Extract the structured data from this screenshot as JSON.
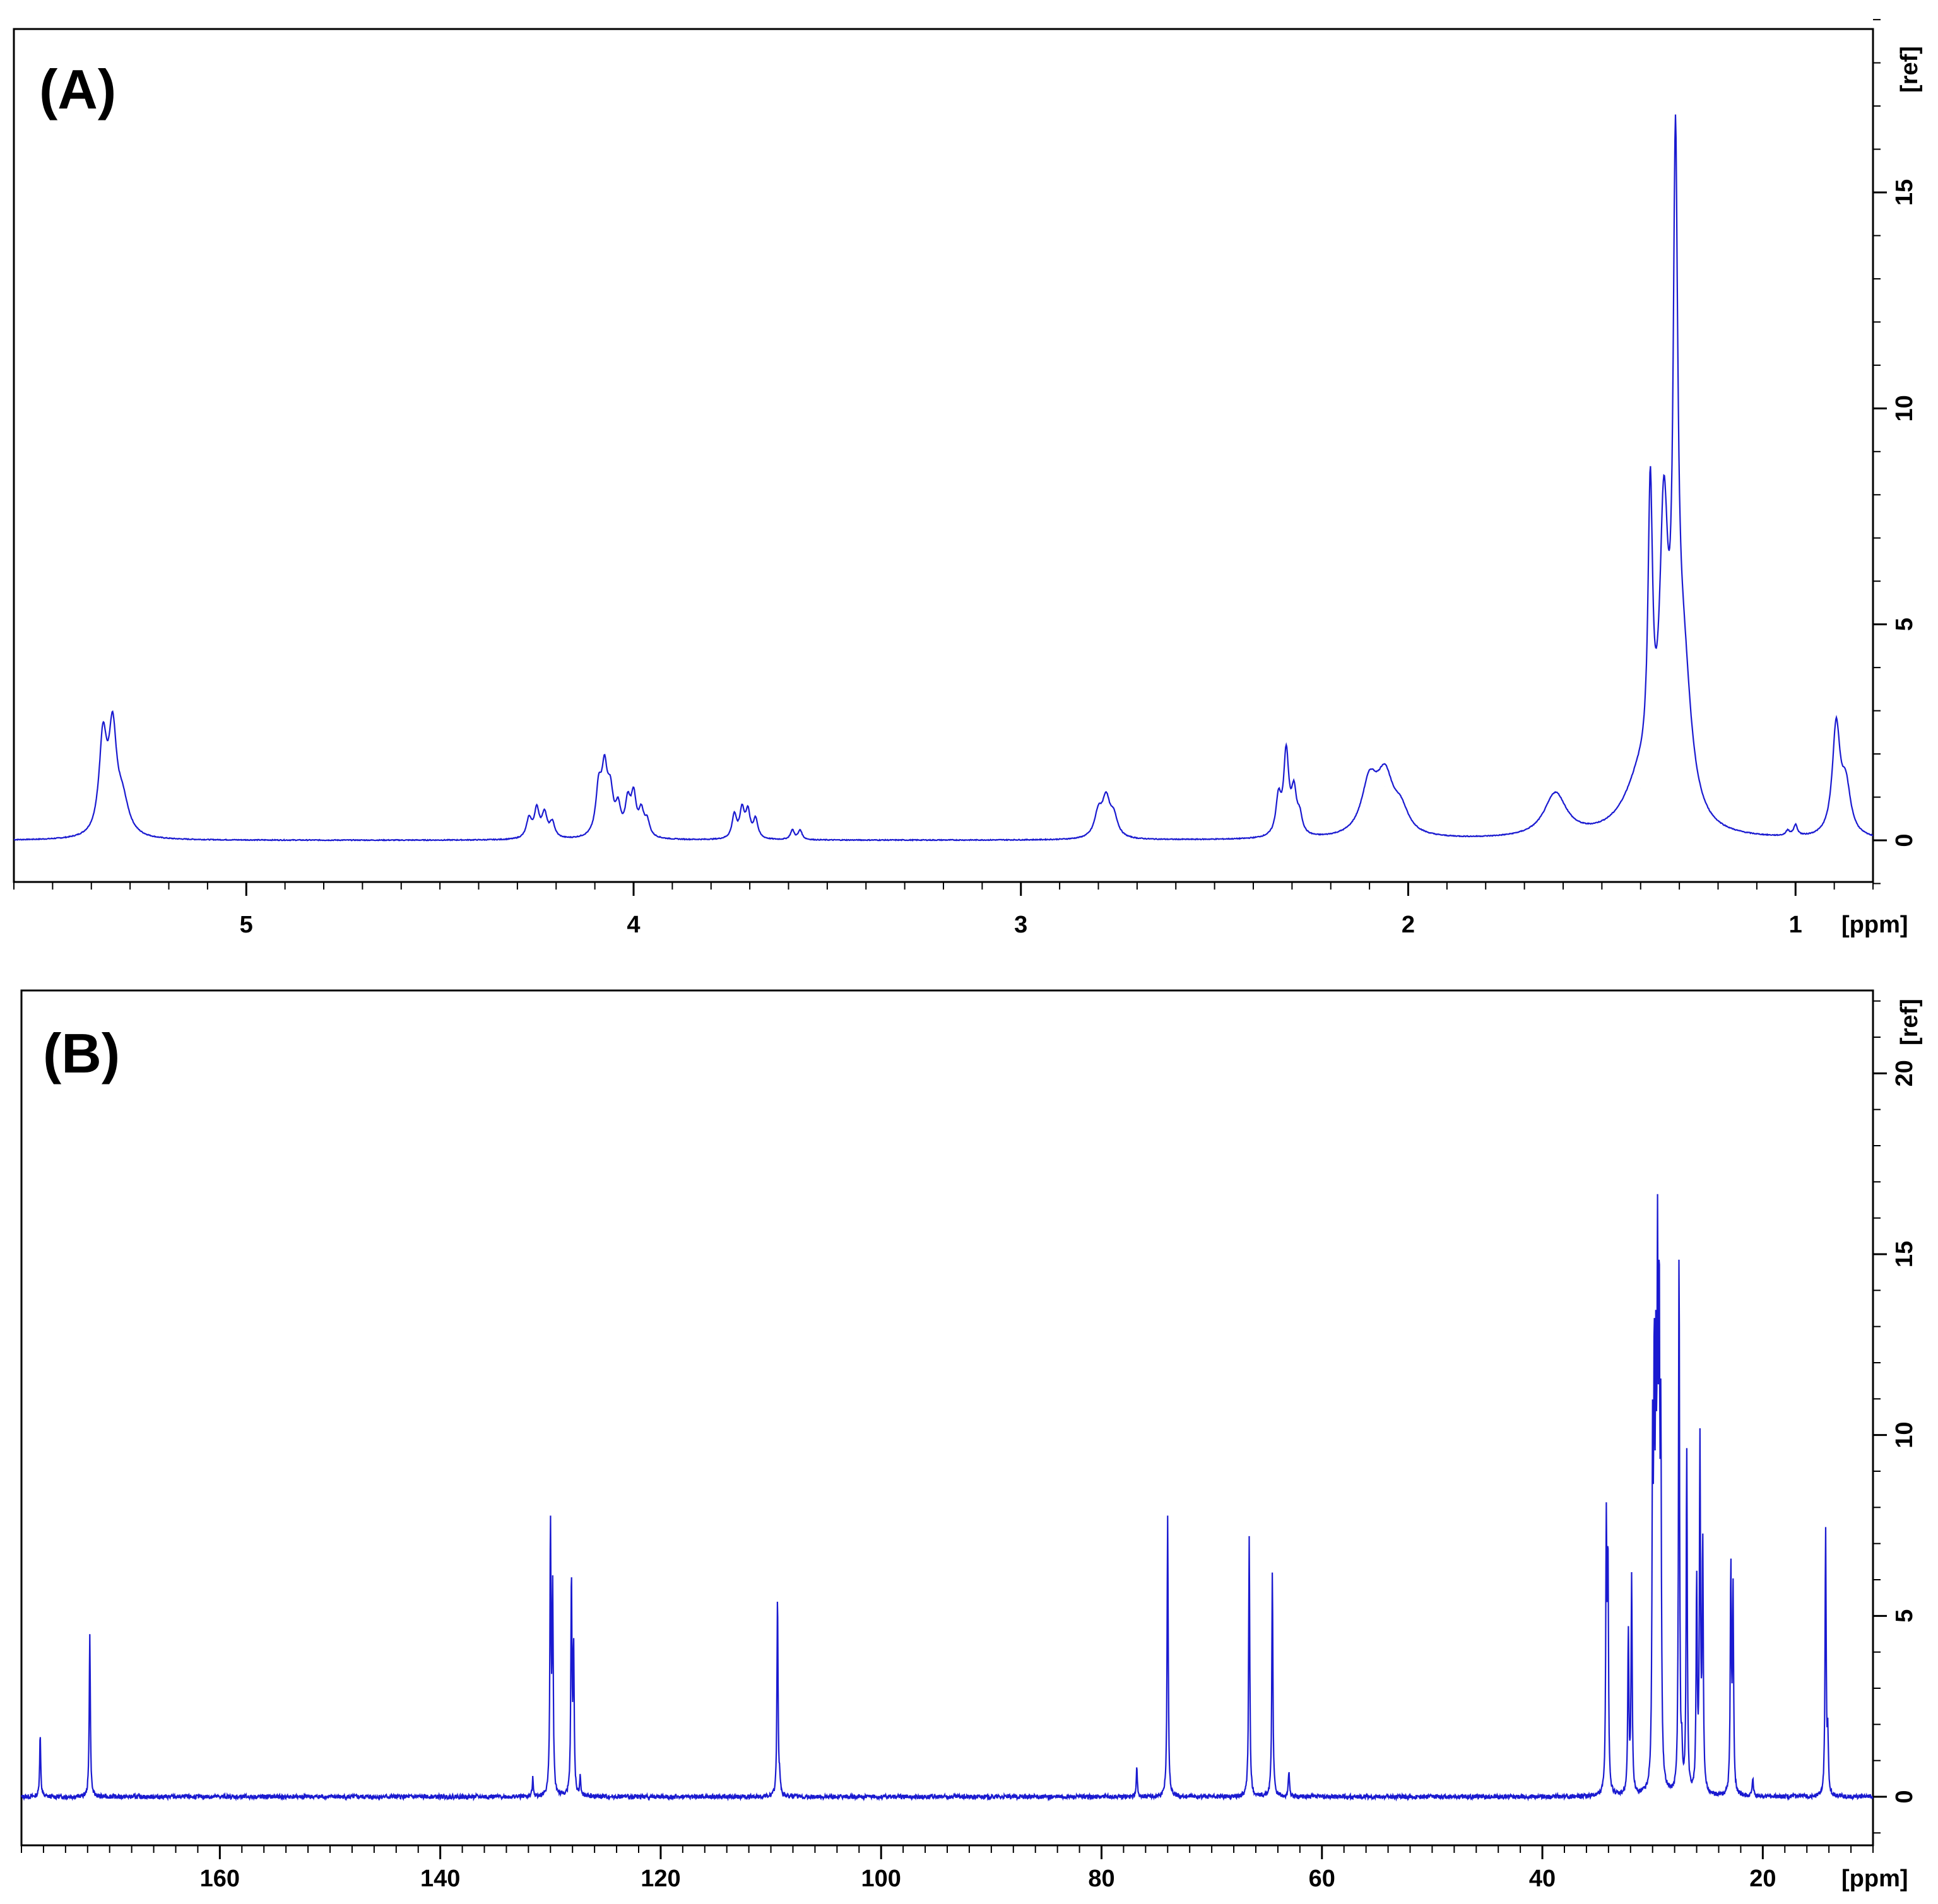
{
  "colors": {
    "trace": "#1a1ad0",
    "axis": "#000000",
    "background": "#ffffff"
  },
  "chart_data": [
    {
      "type": "line",
      "panel_label": "(A)",
      "xlabel": "[ppm]",
      "ylabel": "[ref]",
      "xlim": [
        5.6,
        0.8
      ],
      "ylim": [
        -1,
        19
      ],
      "x_reversed": true,
      "x_ticks": [
        5,
        4,
        3,
        2,
        1
      ],
      "y_ticks": [
        0,
        5,
        10,
        15
      ],
      "series": [
        {
          "peaks": [
            {
              "x": 5.37,
              "y": 2.2,
              "w": 0.012
            },
            {
              "x": 5.345,
              "y": 2.25,
              "w": 0.012
            },
            {
              "x": 5.32,
              "y": 0.8,
              "w": 0.02
            },
            {
              "x": 4.27,
              "y": 0.45,
              "w": 0.008
            },
            {
              "x": 4.25,
              "y": 0.65,
              "w": 0.008
            },
            {
              "x": 4.23,
              "y": 0.55,
              "w": 0.008
            },
            {
              "x": 4.21,
              "y": 0.35,
              "w": 0.008
            },
            {
              "x": 4.09,
              "y": 1.05,
              "w": 0.009
            },
            {
              "x": 4.075,
              "y": 1.4,
              "w": 0.009
            },
            {
              "x": 4.06,
              "y": 0.9,
              "w": 0.009
            },
            {
              "x": 4.04,
              "y": 0.6,
              "w": 0.008
            },
            {
              "x": 4.015,
              "y": 0.75,
              "w": 0.008
            },
            {
              "x": 4.0,
              "y": 0.9,
              "w": 0.008
            },
            {
              "x": 3.98,
              "y": 0.55,
              "w": 0.008
            },
            {
              "x": 3.965,
              "y": 0.35,
              "w": 0.008
            },
            {
              "x": 3.74,
              "y": 0.55,
              "w": 0.007
            },
            {
              "x": 3.72,
              "y": 0.65,
              "w": 0.007
            },
            {
              "x": 3.705,
              "y": 0.6,
              "w": 0.007
            },
            {
              "x": 3.685,
              "y": 0.45,
              "w": 0.007
            },
            {
              "x": 3.59,
              "y": 0.22,
              "w": 0.006
            },
            {
              "x": 3.57,
              "y": 0.22,
              "w": 0.006
            },
            {
              "x": 2.8,
              "y": 0.55,
              "w": 0.012
            },
            {
              "x": 2.78,
              "y": 0.85,
              "w": 0.012
            },
            {
              "x": 2.76,
              "y": 0.45,
              "w": 0.012
            },
            {
              "x": 2.335,
              "y": 0.85,
              "w": 0.008
            },
            {
              "x": 2.315,
              "y": 1.9,
              "w": 0.008
            },
            {
              "x": 2.295,
              "y": 0.95,
              "w": 0.008
            },
            {
              "x": 2.28,
              "y": 0.4,
              "w": 0.008
            },
            {
              "x": 2.1,
              "y": 1.2,
              "w": 0.025
            },
            {
              "x": 2.06,
              "y": 1.25,
              "w": 0.025
            },
            {
              "x": 2.02,
              "y": 0.55,
              "w": 0.025
            },
            {
              "x": 1.62,
              "y": 1.0,
              "w": 0.035
            },
            {
              "x": 1.4,
              "y": 1.2,
              "w": 0.05
            },
            {
              "x": 1.375,
              "y": 6.5,
              "w": 0.007
            },
            {
              "x": 1.34,
              "y": 6.3,
              "w": 0.013
            },
            {
              "x": 1.31,
              "y": 13.3,
              "w": 0.007
            },
            {
              "x": 1.29,
              "y": 3.5,
              "w": 0.025
            },
            {
              "x": 1.02,
              "y": 0.12,
              "w": 0.006
            },
            {
              "x": 1.0,
              "y": 0.25,
              "w": 0.006
            },
            {
              "x": 0.895,
              "y": 2.5,
              "w": 0.012
            },
            {
              "x": 0.87,
              "y": 1.1,
              "w": 0.015
            }
          ]
        }
      ]
    },
    {
      "type": "line",
      "panel_label": "(B)",
      "xlabel": "[ppm]",
      "ylabel": "[ref]",
      "xlim": [
        178,
        10
      ],
      "ylim": [
        -1,
        22
      ],
      "x_reversed": true,
      "x_ticks": [
        160,
        140,
        120,
        100,
        80,
        60,
        40,
        20
      ],
      "y_ticks": [
        0,
        5,
        10,
        15,
        20
      ],
      "series": [
        {
          "peaks": [
            {
              "x": 176.3,
              "y": 1.7
            },
            {
              "x": 171.8,
              "y": 4.5
            },
            {
              "x": 131.6,
              "y": 0.5
            },
            {
              "x": 130.0,
              "y": 7.4
            },
            {
              "x": 129.8,
              "y": 5.5
            },
            {
              "x": 128.1,
              "y": 6.0
            },
            {
              "x": 127.9,
              "y": 4.0
            },
            {
              "x": 127.3,
              "y": 0.5
            },
            {
              "x": 109.4,
              "y": 5.5
            },
            {
              "x": 109.2,
              "y": 0.4
            },
            {
              "x": 76.8,
              "y": 0.8
            },
            {
              "x": 74.0,
              "y": 7.8
            },
            {
              "x": 66.6,
              "y": 7.2
            },
            {
              "x": 64.5,
              "y": 6.2
            },
            {
              "x": 63.0,
              "y": 0.7
            },
            {
              "x": 34.2,
              "y": 7.2
            },
            {
              "x": 34.05,
              "y": 6.2
            },
            {
              "x": 32.2,
              "y": 4.5
            },
            {
              "x": 31.9,
              "y": 6.0
            },
            {
              "x": 30.0,
              "y": 8.8
            },
            {
              "x": 29.85,
              "y": 10.3
            },
            {
              "x": 29.7,
              "y": 9.5
            },
            {
              "x": 29.55,
              "y": 12.8
            },
            {
              "x": 29.4,
              "y": 11.8
            },
            {
              "x": 29.25,
              "y": 9.0
            },
            {
              "x": 27.6,
              "y": 14.9
            },
            {
              "x": 27.35,
              "y": 1.0
            },
            {
              "x": 26.9,
              "y": 9.4
            },
            {
              "x": 26.0,
              "y": 5.8
            },
            {
              "x": 25.7,
              "y": 9.6
            },
            {
              "x": 25.45,
              "y": 6.8
            },
            {
              "x": 22.9,
              "y": 6.2
            },
            {
              "x": 22.7,
              "y": 5.5
            },
            {
              "x": 20.9,
              "y": 0.5
            },
            {
              "x": 14.3,
              "y": 7.4
            },
            {
              "x": 14.1,
              "y": 1.5
            }
          ]
        }
      ]
    }
  ]
}
